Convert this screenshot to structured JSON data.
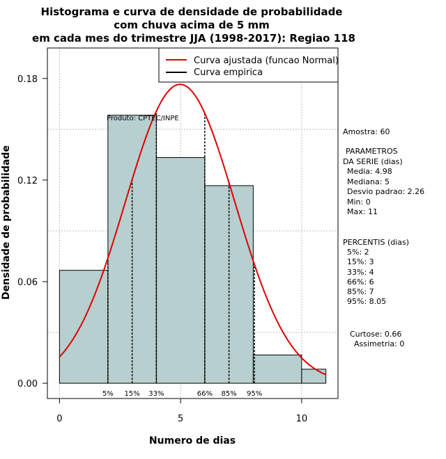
{
  "colors": {
    "bar_fill": "#b7cfcf",
    "curve": "#e00000",
    "empirical": "#000000",
    "grid": "#bbbbbb"
  },
  "chart_data": {
    "type": "bar",
    "title_lines": [
      "Histograma e curva de densidade de probabilidade",
      "com chuva acima de 5 mm",
      "em cada mes do trimestre JJA (1998-2017): Regiao 118"
    ],
    "xlabel": "Numero de dias",
    "ylabel": "Densidade de probabilidade",
    "xlim": [
      -0.5,
      11.5
    ],
    "ylim": [
      -0.009,
      0.198
    ],
    "x_ticks": [
      0,
      5,
      10
    ],
    "x_tick_labels": [
      "0",
      "5",
      "10"
    ],
    "y_ticks": [
      0.0,
      0.06,
      0.12,
      0.18
    ],
    "y_tick_labels": [
      "0.00",
      "0.06",
      "0.12",
      "0.18"
    ],
    "grid": true,
    "legend_position": "top-right",
    "legend": [
      {
        "label": "Curva ajustada (funcao Normal)",
        "color": "#e00000"
      },
      {
        "label": "Curva empirica",
        "color": "#000000"
      }
    ],
    "bins": [
      {
        "x0": 0,
        "x1": 2,
        "density": 0.0667
      },
      {
        "x0": 2,
        "x1": 4,
        "density": 0.1583
      },
      {
        "x0": 4,
        "x1": 6,
        "density": 0.1333
      },
      {
        "x0": 6,
        "x1": 8,
        "density": 0.1167
      },
      {
        "x0": 8,
        "x1": 10,
        "density": 0.0167
      },
      {
        "x0": 10,
        "x1": 11,
        "density": 0.0083
      }
    ],
    "normal_fit": {
      "mean": 4.98,
      "sd": 2.26,
      "x_range": [
        0,
        11
      ]
    },
    "percentile_lines": [
      {
        "x": 2,
        "label": "5%"
      },
      {
        "x": 3,
        "label": "15%"
      },
      {
        "x": 4,
        "label": "33%"
      },
      {
        "x": 6,
        "label": "66%"
      },
      {
        "x": 7,
        "label": "85%"
      },
      {
        "x": 8.05,
        "label": "95%"
      }
    ],
    "annotation": "Produto: CPTEC/INPE"
  },
  "stats_panel": {
    "sample": "Amostra: 60",
    "params_title_1": "PARAMETROS",
    "params_title_2": "DA SERIE (dias)",
    "params": [
      "Media: 4.98",
      "Mediana: 5",
      "Desvio padrao: 2.26",
      "Min: 0",
      "Max: 11"
    ],
    "percentis_title": "PERCENTIS (dias)",
    "percentis": [
      "5%: 2",
      "15%: 3",
      "33%: 4",
      "66%: 6",
      "85%: 7",
      "95%: 8.05"
    ],
    "curtose": "Curtose: 0.66",
    "assimetria": "Assimetria: 0"
  }
}
